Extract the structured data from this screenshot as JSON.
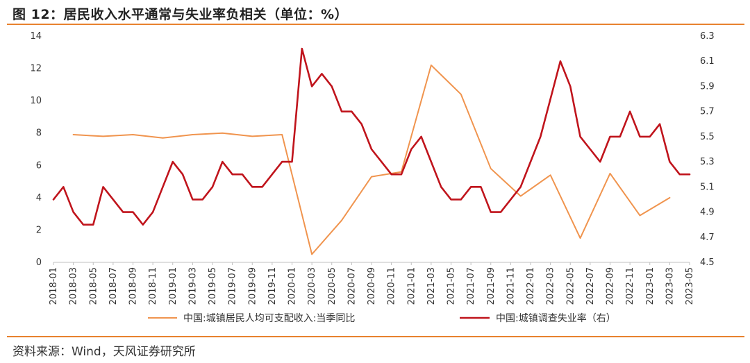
{
  "figure": {
    "title": "图 12：居民收入水平通常与失业率负相关（单位：%）",
    "source": "资料来源：Wind，天风证券研究所"
  },
  "colors": {
    "accent": "#e8822f",
    "income": "#f0944e",
    "unemployment": "#c0141c"
  },
  "chart_data": {
    "type": "line",
    "title": "图 12：居民收入水平通常与失业率负相关（单位：%）",
    "x": [
      "2018-01",
      "2018-02",
      "2018-03",
      "2018-04",
      "2018-05",
      "2018-06",
      "2018-07",
      "2018-08",
      "2018-09",
      "2018-10",
      "2018-11",
      "2018-12",
      "2019-01",
      "2019-02",
      "2019-03",
      "2019-04",
      "2019-05",
      "2019-06",
      "2019-07",
      "2019-08",
      "2019-09",
      "2019-10",
      "2019-11",
      "2019-12",
      "2020-01",
      "2020-02",
      "2020-03",
      "2020-04",
      "2020-05",
      "2020-06",
      "2020-07",
      "2020-08",
      "2020-09",
      "2020-10",
      "2020-11",
      "2020-12",
      "2021-01",
      "2021-02",
      "2021-03",
      "2021-04",
      "2021-05",
      "2021-06",
      "2021-07",
      "2021-08",
      "2021-09",
      "2021-10",
      "2021-11",
      "2021-12",
      "2022-01",
      "2022-02",
      "2022-03",
      "2022-04",
      "2022-05",
      "2022-06",
      "2022-07",
      "2022-08",
      "2022-09",
      "2022-10",
      "2022-11",
      "2022-12",
      "2023-01",
      "2023-02",
      "2023-03",
      "2023-04",
      "2023-05"
    ],
    "x_tick_labels": [
      "2018-01",
      "2018-03",
      "2018-05",
      "2018-07",
      "2018-09",
      "2018-11",
      "2019-01",
      "2019-03",
      "2019-05",
      "2019-07",
      "2019-09",
      "2019-11",
      "2020-01",
      "2020-03",
      "2020-05",
      "2020-07",
      "2020-09",
      "2020-11",
      "2021-01",
      "2021-03",
      "2021-05",
      "2021-07",
      "2021-09",
      "2021-11",
      "2022-01",
      "2022-03",
      "2022-05",
      "2022-07",
      "2022-09",
      "2022-11",
      "2023-01",
      "2023-03",
      "2023-05"
    ],
    "y_left": {
      "ylim": [
        0,
        14
      ],
      "ticks": [
        "0",
        "2",
        "4",
        "6",
        "8",
        "10",
        "12",
        "14"
      ]
    },
    "y_right": {
      "ylim": [
        4.5,
        6.3
      ],
      "ticks": [
        "4.5",
        "4.7",
        "4.9",
        "5.1",
        "5.3",
        "5.5",
        "5.7",
        "5.9",
        "6.1",
        "6.3"
      ]
    },
    "series": [
      {
        "name": "中国:城镇居民人均可支配收入:当季同比",
        "axis": "left",
        "points": [
          {
            "x": "2018-03",
            "y": 7.9
          },
          {
            "x": "2018-06",
            "y": 7.8
          },
          {
            "x": "2018-09",
            "y": 7.9
          },
          {
            "x": "2018-12",
            "y": 7.7
          },
          {
            "x": "2019-03",
            "y": 7.9
          },
          {
            "x": "2019-06",
            "y": 8.0
          },
          {
            "x": "2019-09",
            "y": 7.8
          },
          {
            "x": "2019-12",
            "y": 7.9
          },
          {
            "x": "2020-03",
            "y": 0.5
          },
          {
            "x": "2020-06",
            "y": 2.6
          },
          {
            "x": "2020-09",
            "y": 5.3
          },
          {
            "x": "2020-12",
            "y": 5.6
          },
          {
            "x": "2021-03",
            "y": 12.2
          },
          {
            "x": "2021-06",
            "y": 10.4
          },
          {
            "x": "2021-09",
            "y": 5.8
          },
          {
            "x": "2021-12",
            "y": 4.1
          },
          {
            "x": "2022-03",
            "y": 5.4
          },
          {
            "x": "2022-06",
            "y": 1.5
          },
          {
            "x": "2022-09",
            "y": 5.5
          },
          {
            "x": "2022-12",
            "y": 2.9
          },
          {
            "x": "2023-03",
            "y": 4.0
          }
        ]
      },
      {
        "name": "中国:城镇调查失业率（右）",
        "axis": "right",
        "points": [
          {
            "x": "2018-01",
            "y": 5.0
          },
          {
            "x": "2018-02",
            "y": 5.1
          },
          {
            "x": "2018-03",
            "y": 4.9
          },
          {
            "x": "2018-04",
            "y": 4.8
          },
          {
            "x": "2018-05",
            "y": 4.8
          },
          {
            "x": "2018-06",
            "y": 5.1
          },
          {
            "x": "2018-07",
            "y": 5.0
          },
          {
            "x": "2018-08",
            "y": 4.9
          },
          {
            "x": "2018-09",
            "y": 4.9
          },
          {
            "x": "2018-10",
            "y": 4.8
          },
          {
            "x": "2018-11",
            "y": 4.9
          },
          {
            "x": "2018-12",
            "y": 5.1
          },
          {
            "x": "2019-01",
            "y": 5.3
          },
          {
            "x": "2019-02",
            "y": 5.2
          },
          {
            "x": "2019-03",
            "y": 5.0
          },
          {
            "x": "2019-04",
            "y": 5.0
          },
          {
            "x": "2019-05",
            "y": 5.1
          },
          {
            "x": "2019-06",
            "y": 5.3
          },
          {
            "x": "2019-07",
            "y": 5.2
          },
          {
            "x": "2019-08",
            "y": 5.2
          },
          {
            "x": "2019-09",
            "y": 5.1
          },
          {
            "x": "2019-10",
            "y": 5.1
          },
          {
            "x": "2019-11",
            "y": 5.2
          },
          {
            "x": "2019-12",
            "y": 5.3
          },
          {
            "x": "2020-01",
            "y": 5.3
          },
          {
            "x": "2020-02",
            "y": 6.2
          },
          {
            "x": "2020-03",
            "y": 5.9
          },
          {
            "x": "2020-04",
            "y": 6.0
          },
          {
            "x": "2020-05",
            "y": 5.9
          },
          {
            "x": "2020-06",
            "y": 5.7
          },
          {
            "x": "2020-07",
            "y": 5.7
          },
          {
            "x": "2020-08",
            "y": 5.6
          },
          {
            "x": "2020-09",
            "y": 5.4
          },
          {
            "x": "2020-10",
            "y": 5.3
          },
          {
            "x": "2020-11",
            "y": 5.2
          },
          {
            "x": "2020-12",
            "y": 5.2
          },
          {
            "x": "2021-01",
            "y": 5.4
          },
          {
            "x": "2021-02",
            "y": 5.5
          },
          {
            "x": "2021-03",
            "y": 5.3
          },
          {
            "x": "2021-04",
            "y": 5.1
          },
          {
            "x": "2021-05",
            "y": 5.0
          },
          {
            "x": "2021-06",
            "y": 5.0
          },
          {
            "x": "2021-07",
            "y": 5.1
          },
          {
            "x": "2021-08",
            "y": 5.1
          },
          {
            "x": "2021-09",
            "y": 4.9
          },
          {
            "x": "2021-10",
            "y": 4.9
          },
          {
            "x": "2021-11",
            "y": 5.0
          },
          {
            "x": "2021-12",
            "y": 5.1
          },
          {
            "x": "2022-01",
            "y": 5.3
          },
          {
            "x": "2022-02",
            "y": 5.5
          },
          {
            "x": "2022-03",
            "y": 5.8
          },
          {
            "x": "2022-04",
            "y": 6.1
          },
          {
            "x": "2022-05",
            "y": 5.9
          },
          {
            "x": "2022-06",
            "y": 5.5
          },
          {
            "x": "2022-07",
            "y": 5.4
          },
          {
            "x": "2022-08",
            "y": 5.3
          },
          {
            "x": "2022-09",
            "y": 5.5
          },
          {
            "x": "2022-10",
            "y": 5.5
          },
          {
            "x": "2022-11",
            "y": 5.7
          },
          {
            "x": "2022-12",
            "y": 5.5
          },
          {
            "x": "2023-01",
            "y": 5.5
          },
          {
            "x": "2023-02",
            "y": 5.6
          },
          {
            "x": "2023-03",
            "y": 5.3
          },
          {
            "x": "2023-04",
            "y": 5.2
          },
          {
            "x": "2023-05",
            "y": 5.2
          }
        ]
      }
    ],
    "legend": "bottom-center",
    "grid": false
  }
}
